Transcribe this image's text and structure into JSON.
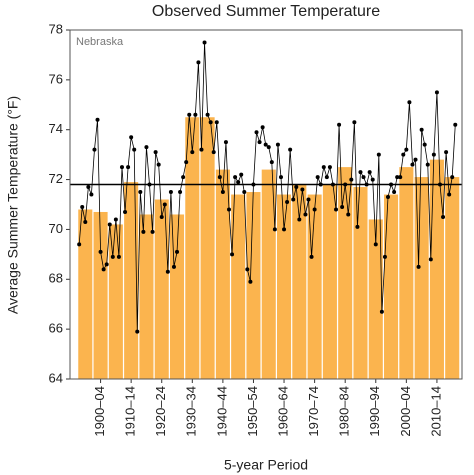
{
  "chart_data": {
    "type": "bar",
    "title": "Observed Summer Temperature",
    "annotation": "Nebraska",
    "x_label": "5-year Period",
    "y_label": "Average Summer Temperature (°F)",
    "categories": [
      null,
      "1900–04",
      null,
      "1910–14",
      null,
      "1920–24",
      null,
      "1930–34",
      null,
      "1940–44",
      null,
      "1950–54",
      null,
      "1960–64",
      null,
      "1970–74",
      null,
      "1980–84",
      null,
      "1990–94",
      null,
      "2000–04",
      null,
      "2010–14",
      null
    ],
    "values": [
      70.8,
      70.7,
      70.2,
      71.9,
      70.6,
      71.2,
      70.6,
      74.5,
      74.5,
      72.4,
      71.4,
      71.5,
      72.4,
      71.4,
      71.8,
      71.4,
      71.8,
      72.5,
      71.7,
      70.4,
      71.4,
      72.5,
      72.1,
      72.8,
      72.1
    ],
    "color": "#fbb44e",
    "x": [
      1895,
      1896,
      1897,
      1898,
      1899,
      1900,
      1901,
      1902,
      1903,
      1904,
      1905,
      1906,
      1907,
      1908,
      1909,
      1910,
      1911,
      1912,
      1913,
      1914,
      1915,
      1916,
      1917,
      1918,
      1919,
      1920,
      1921,
      1922,
      1923,
      1924,
      1925,
      1926,
      1927,
      1928,
      1929,
      1930,
      1931,
      1932,
      1933,
      1934,
      1935,
      1936,
      1937,
      1938,
      1939,
      1940,
      1941,
      1942,
      1943,
      1944,
      1945,
      1946,
      1947,
      1948,
      1949,
      1950,
      1951,
      1952,
      1953,
      1954,
      1955,
      1956,
      1957,
      1958,
      1959,
      1960,
      1961,
      1962,
      1963,
      1964,
      1965,
      1966,
      1967,
      1968,
      1969,
      1970,
      1971,
      1972,
      1973,
      1974,
      1975,
      1976,
      1977,
      1978,
      1979,
      1980,
      1981,
      1982,
      1983,
      1984,
      1985,
      1986,
      1987,
      1988,
      1989,
      1990,
      1991,
      1992,
      1993,
      1994,
      1995,
      1996,
      1997,
      1998,
      1999,
      2000,
      2001,
      2002,
      2003,
      2004,
      2005,
      2006,
      2007,
      2008,
      2009,
      2010,
      2011,
      2012,
      2013,
      2014,
      2015,
      2016,
      2017,
      2018
    ],
    "line_values": [
      69.4,
      70.9,
      70.3,
      71.7,
      71.4,
      73.2,
      74.4,
      69.1,
      68.4,
      68.6,
      70.2,
      68.9,
      70.4,
      68.9,
      72.5,
      70.7,
      72.5,
      73.7,
      73.2,
      65.9,
      71.5,
      69.9,
      73.3,
      71.8,
      69.9,
      73.1,
      72.6,
      70.5,
      71.0,
      68.3,
      71.5,
      68.5,
      69.1,
      71.5,
      72.1,
      72.7,
      74.6,
      73.1,
      74.6,
      76.7,
      73.2,
      77.5,
      74.6,
      74.3,
      73.1,
      74.3,
      72.1,
      71.5,
      73.5,
      70.8,
      69.0,
      72.1,
      71.9,
      72.2,
      71.5,
      68.4,
      67.9,
      71.8,
      73.9,
      73.5,
      74.1,
      73.4,
      73.3,
      72.7,
      70.0,
      73.4,
      72.1,
      70.0,
      71.1,
      73.2,
      71.2,
      71.7,
      70.4,
      71.6,
      70.6,
      71.2,
      68.9,
      70.8,
      72.1,
      71.8,
      72.5,
      72.1,
      72.5,
      71.8,
      70.8,
      74.2,
      70.9,
      71.8,
      70.6,
      72.0,
      74.3,
      70.1,
      72.3,
      72.1,
      71.8,
      72.3,
      72.0,
      69.4,
      73.0,
      66.7,
      68.9,
      71.3,
      71.8,
      71.5,
      72.1,
      72.1,
      73.0,
      73.2,
      75.1,
      72.6,
      72.8,
      68.5,
      74.0,
      73.4,
      72.6,
      68.8,
      73.0,
      75.5,
      71.8,
      70.5,
      73.1,
      71.4,
      72.1,
      74.2
    ],
    "line_color": "#000000",
    "average": 71.8,
    "xlim": [
      1892,
      2020.2
    ],
    "ylim": [
      64,
      78
    ],
    "yticks": [
      64,
      66,
      68,
      70,
      72,
      74,
      76,
      78
    ]
  }
}
